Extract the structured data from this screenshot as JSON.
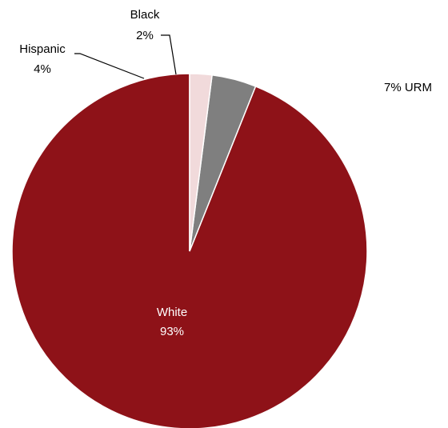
{
  "chart_data": {
    "type": "pie",
    "title": "",
    "annotation": "7% URM",
    "start_angle_deg": 0,
    "direction": "counterclockwise",
    "slices": [
      {
        "name": "White",
        "value": 93,
        "value_label": "93%",
        "color": "#8e1218",
        "label_color": "#ffffff"
      },
      {
        "name": "Hispanic",
        "value": 4,
        "value_label": "4%",
        "color": "#7f7f7f",
        "label_color": "#000000"
      },
      {
        "name": "Black",
        "value": 2,
        "value_label": "2%",
        "color": "#f1dadb",
        "label_color": "#000000"
      }
    ]
  }
}
